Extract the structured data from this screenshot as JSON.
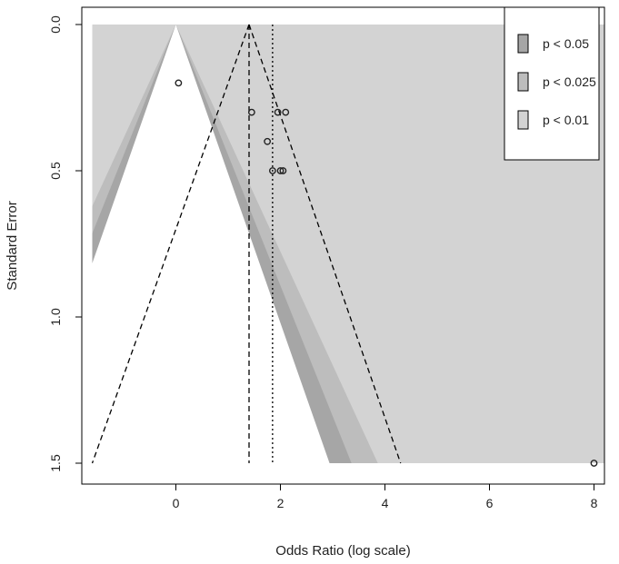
{
  "chart_data": {
    "type": "scatter",
    "subtype": "contour-enhanced funnel plot",
    "title": "",
    "xlabel": "Odds Ratio (log scale)",
    "ylabel": "Standard Error",
    "xlim": [
      -1.8,
      8.2
    ],
    "ylim": [
      1.5,
      0
    ],
    "y_axis_inverted": true,
    "x_ticks": [
      0,
      2,
      4,
      6,
      8
    ],
    "y_ticks": [
      0.0,
      0.5,
      1.0,
      1.5
    ],
    "y_tick_labels": [
      "0.0",
      "0.5",
      "1.0",
      "1.5"
    ],
    "grid": false,
    "contour_reference": 0,
    "contour_extent": {
      "xmin": -1.6,
      "xmax": 8.2,
      "se_max": 1.5
    },
    "contour_levels": [
      {
        "label": "p < 0.05",
        "z": 1.96,
        "color": "#a6a6a6"
      },
      {
        "label": "p < 0.025",
        "z": 2.24,
        "color": "#bdbdbd"
      },
      {
        "label": "p < 0.01",
        "z": 2.576,
        "color": "#d3d3d3"
      }
    ],
    "contour_inner_color": "#ffffff",
    "pooled_estimates": [
      {
        "style": "dashed",
        "x": 1.4
      },
      {
        "style": "dotted",
        "x": 1.85
      }
    ],
    "funnel": {
      "center": 1.4,
      "apex_se": 0,
      "base_se": 1.5,
      "base_x": [
        -1.6,
        4.3
      ],
      "style": "dashed"
    },
    "points": [
      {
        "x": 0.05,
        "y": 0.2
      },
      {
        "x": 1.45,
        "y": 0.3
      },
      {
        "x": 1.75,
        "y": 0.4
      },
      {
        "x": 1.85,
        "y": 0.5
      },
      {
        "x": 1.95,
        "y": 0.3
      },
      {
        "x": 2.0,
        "y": 0.5
      },
      {
        "x": 2.05,
        "y": 0.5
      },
      {
        "x": 2.1,
        "y": 0.3
      },
      {
        "x": 8.0,
        "y": 1.5
      }
    ],
    "legend": {
      "position": "top-right",
      "entries": [
        {
          "label": "p < 0.05",
          "color": "#a6a6a6"
        },
        {
          "label": "p < 0.025",
          "color": "#bdbdbd"
        },
        {
          "label": "p < 0.01",
          "color": "#d3d3d3"
        }
      ]
    }
  }
}
